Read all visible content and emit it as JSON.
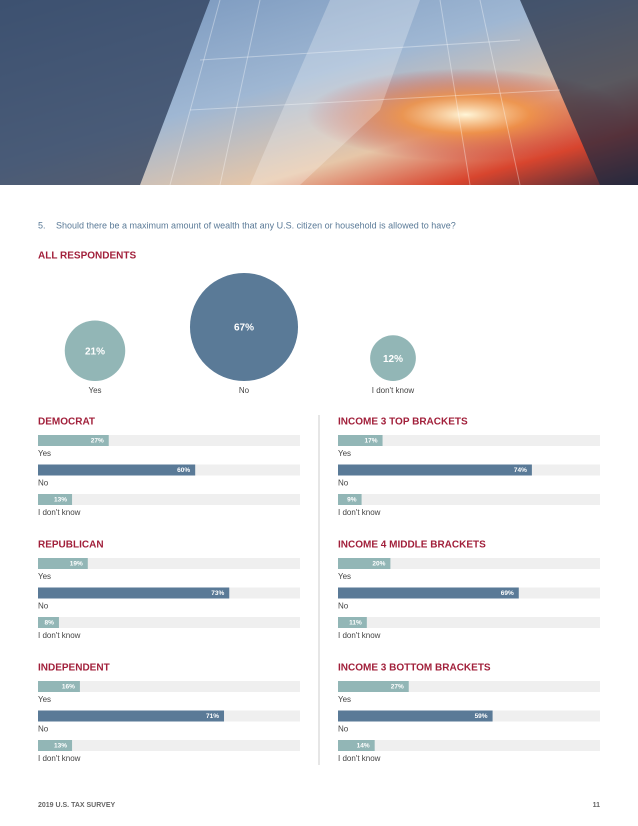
{
  "question": {
    "number": "5.",
    "text": "Should there be a maximum amount of wealth that any U.S. citizen or household is allowed to have?"
  },
  "colors": [
    "#92b6b6",
    "#5a7a97",
    "#92b6b6"
  ],
  "all_respondents": {
    "title": "ALL RESPONDENTS",
    "categories": [
      "Yes",
      "No",
      "I don't know"
    ],
    "values": [
      21,
      67,
      12
    ],
    "value_labels": [
      "21%",
      "67%",
      "12%"
    ]
  },
  "groups": [
    {
      "title": "DEMOCRAT",
      "categories": [
        "Yes",
        "No",
        "I don't know"
      ],
      "values": [
        27,
        60,
        13
      ],
      "value_labels": [
        "27%",
        "60%",
        "13%"
      ]
    },
    {
      "title": "REPUBLICAN",
      "categories": [
        "Yes",
        "No",
        "I don't know"
      ],
      "values": [
        19,
        73,
        8
      ],
      "value_labels": [
        "19%",
        "73%",
        "8%"
      ]
    },
    {
      "title": "INDEPENDENT",
      "categories": [
        "Yes",
        "No",
        "I don't know"
      ],
      "values": [
        16,
        71,
        13
      ],
      "value_labels": [
        "16%",
        "71%",
        "13%"
      ]
    },
    {
      "title": "INCOME 3 TOP BRACKETS",
      "categories": [
        "Yes",
        "No",
        "I don't know"
      ],
      "values": [
        17,
        74,
        9
      ],
      "value_labels": [
        "17%",
        "74%",
        "9%"
      ]
    },
    {
      "title": "INCOME 4 MIDDLE BRACKETS",
      "categories": [
        "Yes",
        "No",
        "I don't know"
      ],
      "values": [
        20,
        69,
        11
      ],
      "value_labels": [
        "20%",
        "69%",
        "11%"
      ]
    },
    {
      "title": "INCOME 3 BOTTOM BRACKETS",
      "categories": [
        "Yes",
        "No",
        "I don't know"
      ],
      "values": [
        27,
        59,
        14
      ],
      "value_labels": [
        "27%",
        "59%",
        "14%"
      ]
    }
  ],
  "footer": {
    "left": "2019 U.S. TAX SURVEY",
    "page": 11
  }
}
